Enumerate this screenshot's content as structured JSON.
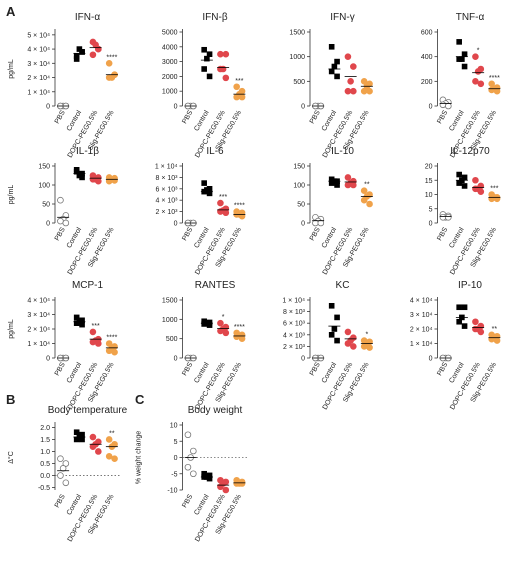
{
  "panel_labels": [
    "A",
    "B",
    "C"
  ],
  "chart_data": [
    {
      "type": "strip",
      "title": "IFN-α",
      "ylabel": "pg/mL",
      "categories": [
        "PBS",
        "Control",
        "DOPC-PEG0.5%",
        "Slig-PEG0.5%"
      ],
      "colors": [
        "#ffffff",
        "#000000",
        "#e0474c",
        "#f0a24a"
      ],
      "markers": [
        "circle",
        "square",
        "circle",
        "circle"
      ],
      "values": [
        [
          0,
          0,
          0,
          0,
          0
        ],
        [
          35000,
          38000,
          40000,
          33000,
          38000
        ],
        [
          45000,
          40000,
          43000,
          36000,
          40000
        ],
        [
          30000,
          22000,
          20000,
          20000,
          22000
        ]
      ],
      "means": [
        0,
        37000,
        41000,
        22000
      ],
      "stars": [
        null,
        null,
        null,
        {
          "text": "****",
          "color": "#000000"
        }
      ],
      "ylim": [
        0,
        52000
      ],
      "yticks": [
        0,
        {
          "value": 10000,
          "label": "1 × 10⁴"
        },
        {
          "value": 20000,
          "label": "2 × 10⁴"
        },
        {
          "value": 30000,
          "label": "3 × 10⁴"
        },
        {
          "value": 40000,
          "label": "4 × 10⁴"
        },
        {
          "value": 50000,
          "label": "5 × 10⁴"
        }
      ]
    },
    {
      "type": "strip",
      "title": "IFN-β",
      "categories": [
        "PBS",
        "Control",
        "DOPC-PEG0.5%",
        "Slig-PEG0.5%"
      ],
      "colors": [
        "#ffffff",
        "#000000",
        "#e0474c",
        "#f0a24a"
      ],
      "markers": [
        "circle",
        "square",
        "circle",
        "circle"
      ],
      "values": [
        [
          0,
          0,
          0,
          0,
          0
        ],
        [
          3800,
          3500,
          3200,
          2500,
          2000
        ],
        [
          3500,
          3500,
          2500,
          2500,
          1900
        ],
        [
          1300,
          1000,
          800,
          600,
          600
        ]
      ],
      "means": [
        0,
        3100,
        2600,
        800
      ],
      "stars": [
        null,
        null,
        null,
        {
          "text": "***",
          "color": "#000000"
        }
      ],
      "ylim": [
        0,
        5000
      ],
      "yticks": [
        0,
        1000,
        2000,
        3000,
        4000,
        5000
      ]
    },
    {
      "type": "strip",
      "title": "IFN-γ",
      "categories": [
        "PBS",
        "Control",
        "DOPC-PEG0.5%",
        "Slig-PEG0.5%"
      ],
      "colors": [
        "#ffffff",
        "#000000",
        "#e0474c",
        "#f0a24a"
      ],
      "markers": [
        "circle",
        "square",
        "circle",
        "circle"
      ],
      "values": [
        [
          0,
          0,
          0,
          0,
          0
        ],
        [
          1200,
          900,
          800,
          700,
          600
        ],
        [
          1000,
          800,
          500,
          300,
          300
        ],
        [
          500,
          450,
          400,
          300,
          300
        ]
      ],
      "means": [
        0,
        750,
        600,
        400
      ],
      "stars": [
        null,
        null,
        null,
        null
      ],
      "ylim": [
        0,
        1500
      ],
      "yticks": [
        0,
        500,
        1000,
        1500
      ]
    },
    {
      "type": "strip",
      "title": "TNF-α",
      "categories": [
        "PBS",
        "Control",
        "DOPC-PEG0.5%",
        "Slig-PEG0.5%"
      ],
      "colors": [
        "#ffffff",
        "#000000",
        "#e0474c",
        "#f0a24a"
      ],
      "markers": [
        "circle",
        "square",
        "circle",
        "circle"
      ],
      "values": [
        [
          50,
          30,
          20,
          10,
          0
        ],
        [
          520,
          420,
          380,
          380,
          320
        ],
        [
          400,
          300,
          280,
          200,
          180
        ],
        [
          180,
          150,
          140,
          130,
          120
        ]
      ],
      "means": [
        20,
        400,
        270,
        140
      ],
      "stars": [
        null,
        null,
        {
          "text": "*",
          "color": "#3a5fcd"
        },
        {
          "text": "****",
          "color": "#000000"
        }
      ],
      "ylim": [
        0,
        600
      ],
      "yticks": [
        0,
        200,
        400,
        600
      ]
    },
    {
      "type": "strip",
      "title": "IL-1β",
      "ylabel": "pg/mL",
      "categories": [
        "PBS",
        "Control",
        "DOPC-PEG0.5%",
        "Slig-PEG0.5%"
      ],
      "colors": [
        "#ffffff",
        "#000000",
        "#e0474c",
        "#f0a24a"
      ],
      "markers": [
        "circle",
        "square",
        "circle",
        "circle"
      ],
      "values": [
        [
          60,
          20,
          10,
          5,
          0
        ],
        [
          140,
          130,
          125,
          135,
          120
        ],
        [
          125,
          120,
          115,
          115,
          110
        ],
        [
          120,
          118,
          115,
          110,
          112
        ]
      ],
      "means": [
        15,
        130,
        118,
        115
      ],
      "stars": [
        null,
        null,
        null,
        null
      ],
      "ylim": [
        0,
        150
      ],
      "yticks": [
        0,
        50,
        100,
        150
      ]
    },
    {
      "type": "strip",
      "title": "IL-6",
      "categories": [
        "PBS",
        "Control",
        "DOPC-PEG0.5%",
        "Slig-PEG0.5%"
      ],
      "colors": [
        "#ffffff",
        "#000000",
        "#e0474c",
        "#f0a24a"
      ],
      "markers": [
        "circle",
        "square",
        "circle",
        "circle"
      ],
      "values": [
        [
          0,
          0,
          0,
          0,
          0
        ],
        [
          7000,
          6000,
          5800,
          5500,
          5200
        ],
        [
          3500,
          2500,
          2200,
          2000,
          1800
        ],
        [
          2000,
          1800,
          1500,
          1500,
          1200
        ]
      ],
      "means": [
        0,
        5500,
        2300,
        1500
      ],
      "stars": [
        null,
        null,
        {
          "text": "***",
          "color": "#000000"
        },
        {
          "text": "****",
          "color": "#000000"
        }
      ],
      "ylim": [
        0,
        10000
      ],
      "yticks": [
        0,
        {
          "value": 2000,
          "label": "2 × 10³"
        },
        {
          "value": 4000,
          "label": "4 × 10³"
        },
        {
          "value": 6000,
          "label": "6 × 10³"
        },
        {
          "value": 8000,
          "label": "8 × 10³"
        },
        {
          "value": 10000,
          "label": "1 × 10⁴"
        }
      ]
    },
    {
      "type": "strip",
      "title": "IL-10",
      "categories": [
        "PBS",
        "Control",
        "DOPC-PEG0.5%",
        "Slig-PEG0.5%"
      ],
      "colors": [
        "#ffffff",
        "#000000",
        "#e0474c",
        "#f0a24a"
      ],
      "markers": [
        "circle",
        "square",
        "circle",
        "circle"
      ],
      "values": [
        [
          15,
          10,
          5,
          0,
          0
        ],
        [
          115,
          110,
          110,
          105,
          100
        ],
        [
          120,
          110,
          105,
          100,
          100
        ],
        [
          85,
          75,
          70,
          60,
          50
        ]
      ],
      "means": [
        6,
        110,
        108,
        70
      ],
      "stars": [
        null,
        null,
        null,
        {
          "text": "**",
          "color": "#000000"
        }
      ],
      "ylim": [
        0,
        150
      ],
      "yticks": [
        0,
        50,
        100,
        150
      ]
    },
    {
      "type": "strip",
      "title": "IL-12p70",
      "categories": [
        "PBS",
        "Control",
        "DOPC-PEG0.5%",
        "Slig-PEG0.5%"
      ],
      "colors": [
        "#ffffff",
        "#000000",
        "#e0474c",
        "#f0a24a"
      ],
      "markers": [
        "circle",
        "square",
        "circle",
        "circle"
      ],
      "values": [
        [
          3,
          2.5,
          2,
          2,
          2
        ],
        [
          17,
          16,
          15,
          14,
          13
        ],
        [
          15,
          13,
          12,
          12,
          11
        ],
        [
          10,
          9,
          9,
          8.5,
          8.5
        ]
      ],
      "means": [
        2.3,
        15,
        12.5,
        9
      ],
      "stars": [
        null,
        null,
        null,
        {
          "text": "***",
          "color": "#000000"
        }
      ],
      "ylim": [
        0,
        20
      ],
      "yticks": [
        0,
        5,
        10,
        15,
        20
      ]
    },
    {
      "type": "strip",
      "title": "MCP-1",
      "ylabel": "pg/mL",
      "categories": [
        "PBS",
        "Control",
        "DOPC-PEG0.5%",
        "Slig-PEG0.5%"
      ],
      "colors": [
        "#ffffff",
        "#000000",
        "#e0474c",
        "#f0a24a"
      ],
      "markers": [
        "circle",
        "square",
        "circle",
        "circle"
      ],
      "values": [
        [
          0,
          0,
          0,
          0,
          0
        ],
        [
          28000,
          26000,
          25000,
          24000,
          23000
        ],
        [
          18000,
          13000,
          12000,
          11000,
          10000
        ],
        [
          10000,
          8000,
          7000,
          5000,
          4000
        ]
      ],
      "means": [
        0,
        25000,
        13000,
        7000
      ],
      "stars": [
        null,
        null,
        {
          "text": "***",
          "color": "#000000"
        },
        {
          "text": "****",
          "color": "#000000"
        }
      ],
      "ylim": [
        0,
        40000
      ],
      "yticks": [
        0,
        {
          "value": 10000,
          "label": "1 × 10⁴"
        },
        {
          "value": 20000,
          "label": "2 × 10⁴"
        },
        {
          "value": 30000,
          "label": "3 × 10⁴"
        },
        {
          "value": 40000,
          "label": "4 × 10⁴"
        }
      ]
    },
    {
      "type": "strip",
      "title": "RANTES",
      "categories": [
        "PBS",
        "Control",
        "DOPC-PEG0.5%",
        "Slig-PEG0.5%"
      ],
      "colors": [
        "#ffffff",
        "#000000",
        "#e0474c",
        "#f0a24a"
      ],
      "markers": [
        "circle",
        "square",
        "circle",
        "circle"
      ],
      "values": [
        [
          0,
          0,
          0,
          0,
          0
        ],
        [
          950,
          920,
          900,
          880,
          850
        ],
        [
          900,
          800,
          750,
          700,
          650
        ],
        [
          650,
          600,
          580,
          550,
          500
        ]
      ],
      "means": [
        0,
        900,
        760,
        570
      ],
      "stars": [
        null,
        null,
        {
          "text": "*",
          "color": "#3a5fcd"
        },
        {
          "text": "****",
          "color": "#000000"
        }
      ],
      "ylim": [
        0,
        1500
      ],
      "yticks": [
        0,
        500,
        1000,
        1500
      ]
    },
    {
      "type": "strip",
      "title": "KC",
      "categories": [
        "PBS",
        "Control",
        "DOPC-PEG0.5%",
        "Slig-PEG0.5%"
      ],
      "colors": [
        "#ffffff",
        "#000000",
        "#e0474c",
        "#f0a24a"
      ],
      "markers": [
        "circle",
        "square",
        "circle",
        "circle"
      ],
      "values": [
        [
          0,
          0,
          0,
          0,
          0
        ],
        [
          9000,
          7000,
          5000,
          4000,
          3000
        ],
        [
          4500,
          3500,
          3000,
          2500,
          2000
        ],
        [
          3000,
          2800,
          2500,
          2000,
          1800
        ]
      ],
      "means": [
        0,
        5500,
        3300,
        2500
      ],
      "stars": [
        null,
        null,
        null,
        {
          "text": "*",
          "color": "#000000"
        }
      ],
      "ylim": [
        0,
        10000
      ],
      "yticks": [
        0,
        {
          "value": 2000,
          "label": "2 × 10³"
        },
        {
          "value": 4000,
          "label": "4 × 10³"
        },
        {
          "value": 6000,
          "label": "6 × 10³"
        },
        {
          "value": 8000,
          "label": "8 × 10³"
        },
        {
          "value": 10000,
          "label": "1 × 10⁴"
        }
      ]
    },
    {
      "type": "strip",
      "title": "IP-10",
      "categories": [
        "PBS",
        "Control",
        "DOPC-PEG0.5%",
        "Slig-PEG0.5%"
      ],
      "colors": [
        "#ffffff",
        "#000000",
        "#e0474c",
        "#f0a24a"
      ],
      "markers": [
        "circle",
        "square",
        "circle",
        "circle"
      ],
      "values": [
        [
          0,
          0,
          0,
          0,
          0
        ],
        [
          35000,
          35000,
          28000,
          25000,
          22000
        ],
        [
          25000,
          22000,
          20000,
          20000,
          18000
        ],
        [
          16000,
          15000,
          14000,
          13000,
          12000
        ]
      ],
      "means": [
        0,
        28000,
        21000,
        14000
      ],
      "stars": [
        null,
        null,
        null,
        {
          "text": "**",
          "color": "#000000"
        }
      ],
      "ylim": [
        0,
        40000
      ],
      "yticks": [
        0,
        {
          "value": 10000,
          "label": "1 × 10⁴"
        },
        {
          "value": 20000,
          "label": "2 × 10⁴"
        },
        {
          "value": 30000,
          "label": "3 × 10⁴"
        },
        {
          "value": 40000,
          "label": "4 × 10⁴"
        }
      ]
    },
    {
      "type": "strip",
      "title": "Body temperature",
      "ylabel": "Δ°C",
      "categories": [
        "PBS",
        "Control",
        "DOPC-PEG0.5%",
        "Slig-PEG0.5%"
      ],
      "colors": [
        "#ffffff",
        "#000000",
        "#e0474c",
        "#f0a24a"
      ],
      "markers": [
        "circle",
        "square",
        "circle",
        "circle"
      ],
      "values": [
        [
          0.7,
          0.5,
          0.3,
          0,
          -0.3
        ],
        [
          1.8,
          1.7,
          1.6,
          1.5,
          1.5
        ],
        [
          1.6,
          1.4,
          1.3,
          1.2,
          1.0
        ],
        [
          1.5,
          1.3,
          1.2,
          0.8,
          0.7
        ]
      ],
      "means": [
        0.2,
        1.6,
        1.3,
        1.2
      ],
      "stars": [
        null,
        null,
        null,
        {
          "text": "**",
          "color": "#000000"
        }
      ],
      "ylim": [
        -0.6,
        2.1
      ],
      "ref_line": 0,
      "yticks": [
        {
          "value": -0.5,
          "label": "-0.5"
        },
        {
          "value": 0,
          "label": "0.0"
        },
        {
          "value": 0.5,
          "label": "0.5"
        },
        {
          "value": 1,
          "label": "1.0"
        },
        {
          "value": 1.5,
          "label": "1.5"
        },
        {
          "value": 2,
          "label": "2.0"
        }
      ]
    },
    {
      "type": "strip",
      "title": "Body weight",
      "ylabel": "% weight change",
      "categories": [
        "PBS",
        "Control",
        "DOPC-PEG0.5%",
        "Slig-PEG0.5%"
      ],
      "colors": [
        "#ffffff",
        "#000000",
        "#e0474c",
        "#f0a24a"
      ],
      "markers": [
        "circle",
        "square",
        "circle",
        "circle"
      ],
      "values": [
        [
          7,
          2,
          0,
          -3,
          -5
        ],
        [
          -5,
          -5.5,
          -6,
          -6,
          -6.5
        ],
        [
          -7,
          -7.5,
          -8,
          -9,
          -10
        ],
        [
          -7,
          -7.5,
          -8,
          -8,
          -8
        ]
      ],
      "means": [
        0,
        -6,
        -8.5,
        -7.8
      ],
      "stars": [
        null,
        null,
        null,
        null
      ],
      "ylim": [
        -10,
        10
      ],
      "ref_line": 0,
      "yticks": [
        -10,
        -5,
        0,
        5,
        10
      ]
    }
  ]
}
